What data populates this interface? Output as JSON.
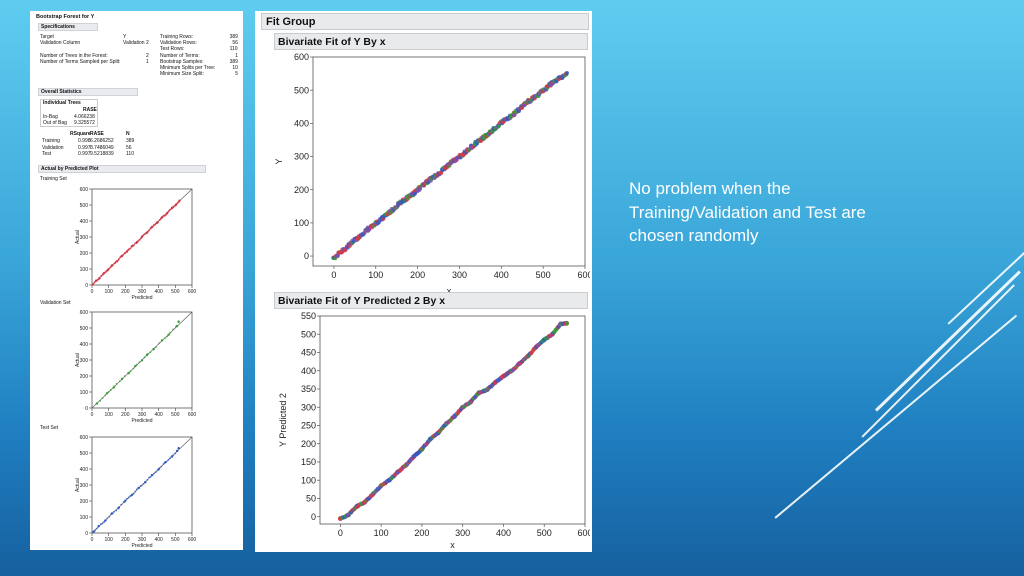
{
  "left_report": {
    "title": "Bootstrap Forest for Y",
    "specifications": {
      "header": "Specifications",
      "left_rows": [
        {
          "label": "Target",
          "value": "Y"
        },
        {
          "label": "Validation Column",
          "value": "Validation 2"
        },
        {
          "label": "",
          "value": ""
        },
        {
          "label": "Number of Trees in the Forest:",
          "value": "2"
        },
        {
          "label": "Number of Terms Sampled per Split:",
          "value": "1"
        }
      ],
      "right_rows": [
        {
          "label": "Training Rows:",
          "value": "389"
        },
        {
          "label": "Validation Rows:",
          "value": "56"
        },
        {
          "label": "Test Rows:",
          "value": "110"
        },
        {
          "label": "Number of Terms:",
          "value": "1"
        },
        {
          "label": "Bootstrap Samples:",
          "value": "389"
        },
        {
          "label": "Minimum Splits per Tree:",
          "value": "10"
        },
        {
          "label": "Minimum Size Split:",
          "value": "5"
        }
      ]
    },
    "overall_statistics": {
      "header": "Overall Statistics",
      "individual_trees": {
        "col1": "Individual Trees",
        "col2": "RASE",
        "rows": [
          {
            "label": "In-Bag",
            "value": "4.066238"
          },
          {
            "label": "Out of Bag",
            "value": "9.325572"
          }
        ]
      },
      "fit_table": {
        "headers": [
          "",
          "RSquare",
          "RASE",
          "N"
        ],
        "rows": [
          [
            "Training",
            "0.998",
            "6.2686252",
            "389"
          ],
          [
            "Validation",
            "0.997",
            "8.7486049",
            "56"
          ],
          [
            "Test",
            "0.997",
            "9.5218839",
            "110"
          ]
        ]
      }
    },
    "actual_by_predicted": {
      "header": "Actual by Predicted Plot",
      "plots": [
        {
          "label": "Training Set",
          "color": "#d33a48",
          "n": 389
        },
        {
          "label": "Validation Set",
          "color": "#3a9a3a",
          "n": 56
        },
        {
          "label": "Test Set",
          "color": "#2e5cc2",
          "n": 110
        }
      ]
    }
  },
  "fit_group": {
    "title": "Fit Group",
    "plot1_title": "Bivariate Fit of Y By x",
    "plot2_title": "Bivariate Fit of Y Predicted 2 By x"
  },
  "chart_data": [
    {
      "type": "scatter",
      "title": "Training Set",
      "xlabel": "Predicted",
      "ylabel": "Actual",
      "xlim": [
        0,
        600
      ],
      "ylim": [
        0,
        600
      ],
      "xticks": [
        "0",
        "100",
        "200",
        "300",
        "400",
        "500",
        "600"
      ],
      "yticks": [
        "0",
        "100",
        "200",
        "300",
        "400",
        "500",
        "600"
      ],
      "x": [
        5,
        25,
        45,
        70,
        95,
        120,
        150,
        180,
        210,
        240,
        270,
        300,
        330,
        360,
        390,
        420,
        450,
        480,
        505,
        525
      ],
      "y": [
        3,
        27,
        43,
        72,
        93,
        122,
        148,
        182,
        209,
        242,
        268,
        302,
        328,
        362,
        388,
        422,
        448,
        482,
        503,
        527
      ]
    },
    {
      "type": "scatter",
      "title": "Validation Set",
      "xlabel": "Predicted",
      "ylabel": "Actual",
      "xlim": [
        0,
        600
      ],
      "ylim": [
        0,
        600
      ],
      "xticks": [
        "0",
        "100",
        "200",
        "300",
        "400",
        "500",
        "600"
      ],
      "yticks": [
        "0",
        "100",
        "200",
        "300",
        "400",
        "500",
        "600"
      ],
      "x": [
        30,
        90,
        130,
        180,
        220,
        260,
        300,
        330,
        370,
        420,
        460,
        510,
        520
      ],
      "y": [
        28,
        92,
        128,
        182,
        218,
        262,
        298,
        332,
        368,
        422,
        458,
        512,
        540
      ]
    },
    {
      "type": "scatter",
      "title": "Test Set",
      "xlabel": "Predicted",
      "ylabel": "Actual",
      "xlim": [
        0,
        600
      ],
      "ylim": [
        0,
        600
      ],
      "xticks": [
        "0",
        "100",
        "200",
        "300",
        "400",
        "500",
        "600"
      ],
      "yticks": [
        "0",
        "100",
        "200",
        "300",
        "400",
        "500",
        "600"
      ],
      "x": [
        10,
        40,
        80,
        120,
        160,
        200,
        240,
        280,
        320,
        360,
        400,
        440,
        480,
        510,
        520
      ],
      "y": [
        8,
        42,
        78,
        122,
        158,
        202,
        238,
        282,
        318,
        362,
        398,
        442,
        478,
        512,
        530
      ]
    },
    {
      "type": "scatter",
      "title": "Bivariate Fit of Y By x",
      "xlabel": "x",
      "ylabel": "Y",
      "xlim": [
        -50,
        600
      ],
      "ylim": [
        -30,
        600
      ],
      "xticks": [
        "0",
        "100",
        "200",
        "300",
        "400",
        "500",
        "600"
      ],
      "yticks": [
        "0",
        "100",
        "200",
        "300",
        "400",
        "500",
        "600"
      ],
      "x": [
        0,
        20,
        40,
        60,
        80,
        100,
        130,
        160,
        190,
        220,
        250,
        280,
        310,
        340,
        370,
        400,
        430,
        460,
        490,
        520,
        545,
        555
      ],
      "y": [
        -5,
        15,
        38,
        58,
        80,
        98,
        128,
        162,
        188,
        222,
        248,
        282,
        308,
        342,
        368,
        402,
        428,
        462,
        488,
        520,
        540,
        548
      ]
    },
    {
      "type": "line",
      "title": "Bivariate Fit of Y Predicted 2 By x",
      "xlabel": "x",
      "ylabel": "Y Predicted 2",
      "xlim": [
        -50,
        600
      ],
      "ylim": [
        -20,
        550
      ],
      "xticks": [
        "0",
        "100",
        "200",
        "300",
        "400",
        "500",
        "600"
      ],
      "yticks": [
        "0",
        "50",
        "100",
        "150",
        "200",
        "250",
        "300",
        "350",
        "400",
        "450",
        "500",
        "550"
      ],
      "x": [
        0,
        20,
        40,
        60,
        80,
        100,
        120,
        140,
        160,
        180,
        200,
        220,
        240,
        260,
        280,
        300,
        320,
        340,
        360,
        380,
        400,
        420,
        440,
        460,
        480,
        500,
        520,
        540,
        555
      ],
      "y": [
        -5,
        5,
        28,
        40,
        62,
        85,
        100,
        122,
        140,
        165,
        185,
        212,
        230,
        255,
        275,
        300,
        315,
        340,
        348,
        368,
        385,
        400,
        420,
        440,
        465,
        485,
        500,
        528,
        530
      ]
    }
  ],
  "slide": {
    "text": "No problem when the\nTraining/Validation and Test are\nchosen randomly"
  }
}
